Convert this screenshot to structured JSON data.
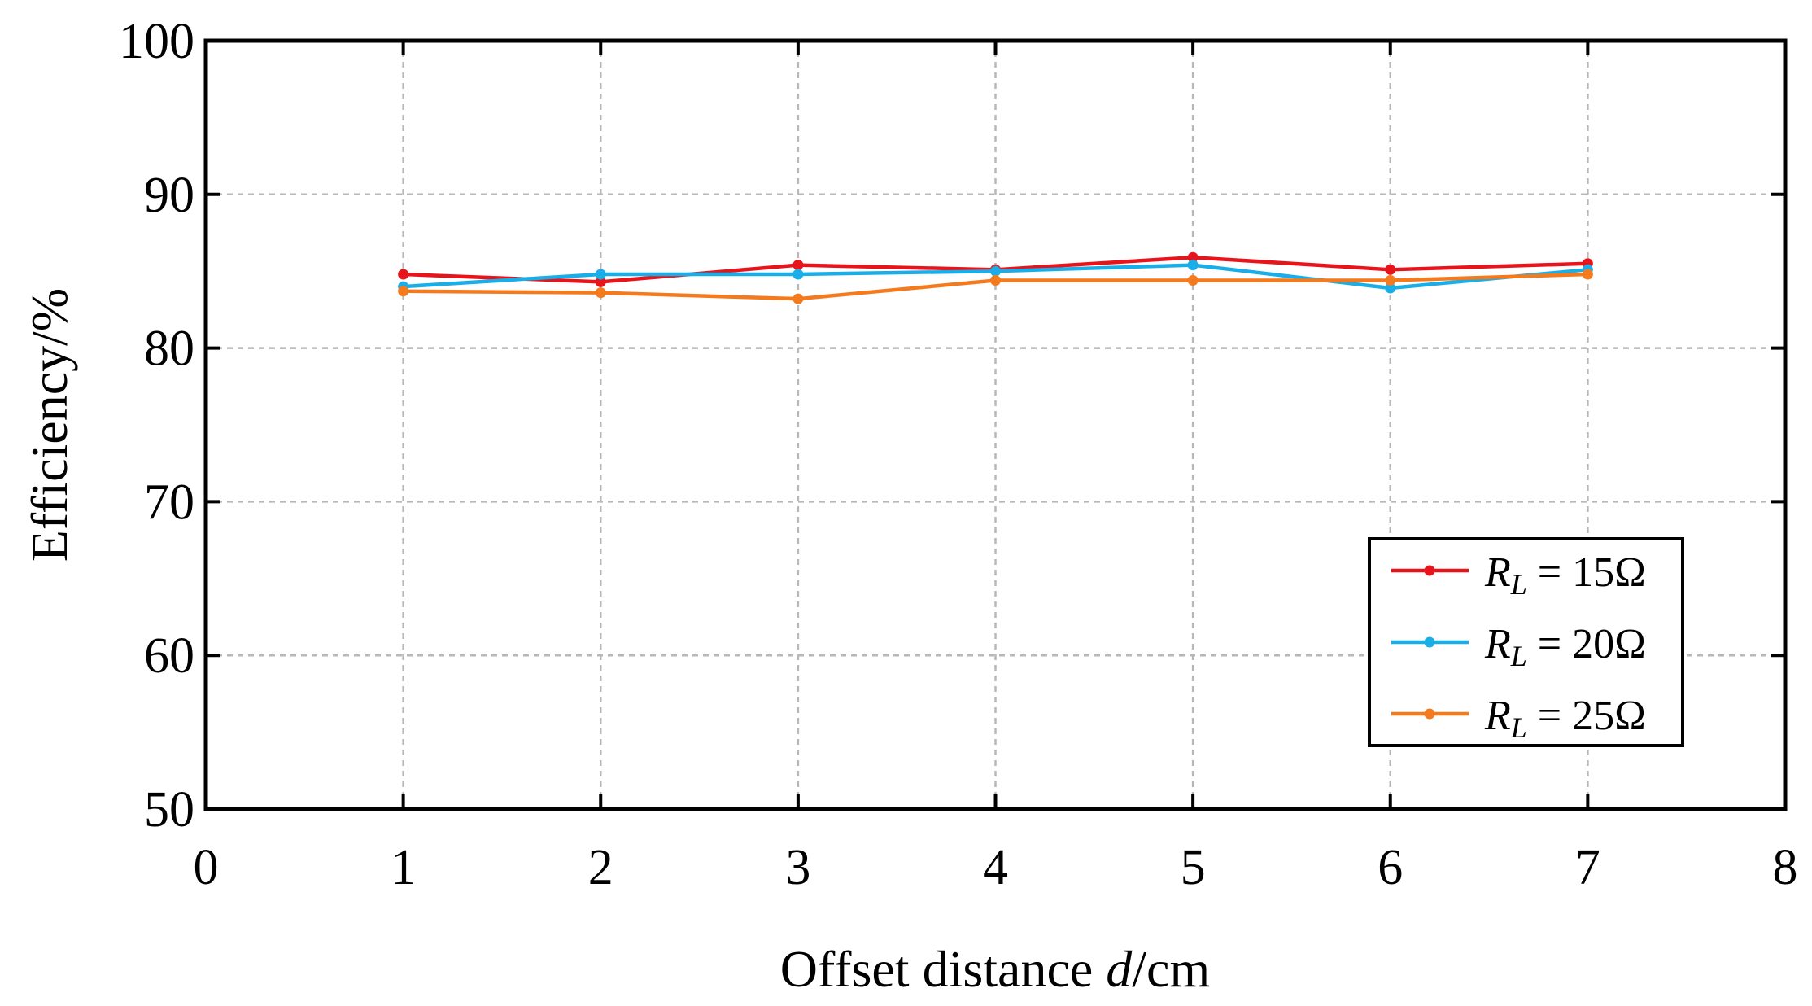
{
  "chart_data": {
    "type": "line",
    "xlabel": "Offset distance ",
    "xlabel_italic": "d",
    "xlabel_unit": "/cm",
    "ylabel": "Efficiency/%",
    "xlim": [
      0,
      8
    ],
    "ylim": [
      50,
      100
    ],
    "xticks": [
      0,
      1,
      2,
      3,
      4,
      5,
      6,
      7,
      8
    ],
    "yticks": [
      50,
      60,
      70,
      80,
      90,
      100
    ],
    "grid": true,
    "legend_position": "lower-right",
    "series": [
      {
        "name": "R_L = 15Ω",
        "legend_var": "R",
        "legend_sub": "L",
        "legend_rest": " = 15Ω",
        "color": "#e8141c",
        "x": [
          1,
          2,
          3,
          4,
          5,
          6,
          7
        ],
        "values": [
          84.8,
          84.3,
          85.4,
          85.1,
          85.9,
          85.1,
          85.5
        ]
      },
      {
        "name": "R_L = 20Ω",
        "legend_var": "R",
        "legend_sub": "L",
        "legend_rest": " = 20Ω",
        "color": "#1aaee8",
        "x": [
          1,
          2,
          3,
          4,
          5,
          6,
          7
        ],
        "values": [
          84.0,
          84.8,
          84.8,
          85.0,
          85.4,
          83.9,
          85.1
        ]
      },
      {
        "name": "R_L = 25Ω",
        "legend_var": "R",
        "legend_sub": "L",
        "legend_rest": " = 25Ω",
        "color": "#f47a1e",
        "x": [
          1,
          2,
          3,
          4,
          5,
          6,
          7
        ],
        "values": [
          83.7,
          83.6,
          83.2,
          84.4,
          84.4,
          84.4,
          84.8
        ]
      }
    ]
  }
}
